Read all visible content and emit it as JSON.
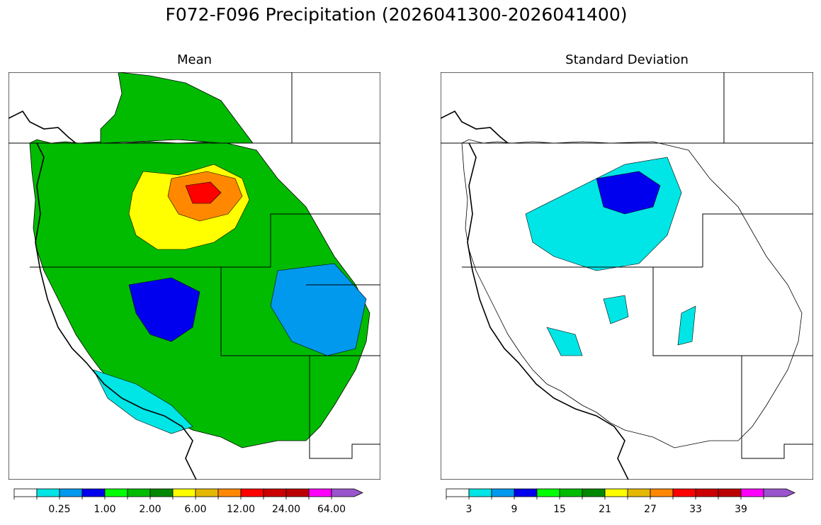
{
  "figure": {
    "title": "F072-F096 Precipitation (2026041300-2026041400)"
  },
  "chart_data": [
    {
      "type": "heatmap",
      "title": "Mean",
      "region": "Western United States river basins",
      "colorbar": {
        "colors": [
          "#ffffff",
          "#00e5e5",
          "#0099ee",
          "#0000ee",
          "#00ff00",
          "#00bb00",
          "#008800",
          "#ffff00",
          "#e5b800",
          "#ff8800",
          "#ff0000",
          "#cc0000",
          "#bb0000",
          "#ff00ff",
          "#9955cc"
        ],
        "tick_labels": [
          "0.25",
          "1.00",
          "2.00",
          "6.00",
          "12.00",
          "24.00",
          "64.00"
        ],
        "tick_bins": [
          2,
          4,
          6,
          8,
          10,
          12,
          14
        ],
        "extend": "max"
      }
    },
    {
      "type": "heatmap",
      "title": "Standard Deviation",
      "region": "Western United States river basins",
      "colorbar": {
        "colors": [
          "#ffffff",
          "#00e5e5",
          "#0099ee",
          "#0000ee",
          "#00ff00",
          "#00bb00",
          "#008800",
          "#ffff00",
          "#e5b800",
          "#ff8800",
          "#ff0000",
          "#cc0000",
          "#bb0000",
          "#ff00ff",
          "#9955cc"
        ],
        "tick_labels": [
          "3",
          "9",
          "15",
          "21",
          "27",
          "33",
          "39"
        ],
        "tick_bins": [
          1,
          3,
          5,
          7,
          9,
          11,
          13
        ],
        "extend": "max"
      }
    }
  ]
}
